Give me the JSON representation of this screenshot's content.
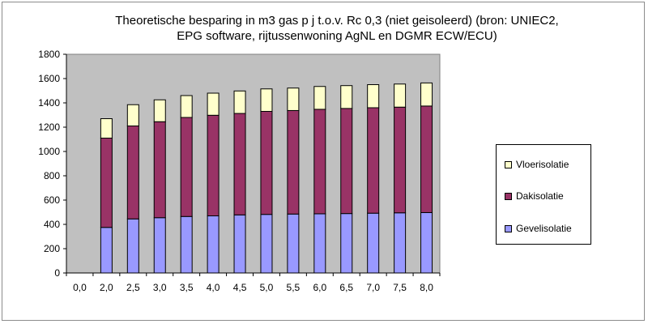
{
  "title_lines": [
    "Theoretische besparing in m3 gas p j t.o.v. Rc 0,3 (niet geisoleerd) (bron: UNIEC2,",
    "EPG software, rijtussenwoning AgNL en DGMR ECW/ECU)"
  ],
  "colors": {
    "plot_background": "#c0c0c0",
    "gevelisolatie": "#9999ff",
    "dakisolatie": "#993366",
    "vloerisolatie": "#ffffcc"
  },
  "chart_data": {
    "type": "bar",
    "stacked": true,
    "title": "Theoretische besparing in m3 gas p j t.o.v. Rc 0,3 (niet geisoleerd) (bron: UNIEC2, EPG software, rijtussenwoning AgNL en DGMR ECW/ECU)",
    "categories": [
      "0,0",
      "2,0",
      "2,5",
      "3,0",
      "3,5",
      "4,0",
      "4,5",
      "5,0",
      "5,5",
      "6,0",
      "6,5",
      "7,0",
      "7,5",
      "8,0"
    ],
    "series": [
      {
        "name": "Gevelisolatie",
        "color": "#9999ff",
        "values": [
          0,
          375,
          445,
          455,
          465,
          470,
          478,
          482,
          485,
          487,
          489,
          492,
          495,
          497
        ]
      },
      {
        "name": "Dakisolatie",
        "color": "#993366",
        "values": [
          0,
          735,
          765,
          790,
          815,
          828,
          835,
          848,
          852,
          860,
          865,
          868,
          870,
          877
        ]
      },
      {
        "name": "Vloerisolatie",
        "color": "#ffffcc",
        "values": [
          0,
          160,
          175,
          180,
          180,
          182,
          185,
          185,
          185,
          188,
          188,
          190,
          190,
          190
        ]
      }
    ],
    "ylim": [
      0,
      1800
    ],
    "yticks": [
      0,
      200,
      400,
      600,
      800,
      1000,
      1200,
      1400,
      1600,
      1800
    ],
    "xlabel": "",
    "ylabel": "",
    "grid": false,
    "legend_position": "right",
    "legend_order": [
      "Vloerisolatie",
      "Dakisolatie",
      "Gevelisolatie"
    ]
  }
}
